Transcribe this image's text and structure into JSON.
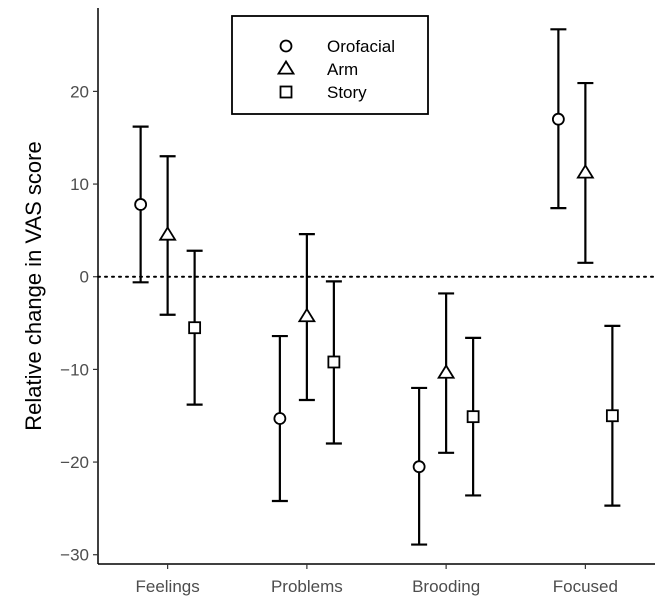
{
  "chart_data": {
    "type": "scatter",
    "subtype": "point-with-error-bars",
    "title": "",
    "xlabel": "",
    "ylabel": "Relative change in VAS score",
    "categories": [
      "Feelings",
      "Problems",
      "Brooding",
      "Focused"
    ],
    "ylim": [
      -31,
      29
    ],
    "yticks": [
      -30,
      -20,
      -10,
      0,
      10,
      20
    ],
    "ytick_labels": [
      "−30",
      "−20",
      "−10",
      "0",
      "10",
      "20"
    ],
    "reference_line": {
      "y": 0,
      "style": "dotted"
    },
    "grid": false,
    "legend_position": "top",
    "series": [
      {
        "name": "Orofacial",
        "marker": "circle",
        "values": [
          7.8,
          -15.3,
          -20.5,
          17.0
        ],
        "lower": [
          -0.6,
          -24.2,
          -28.9,
          7.4
        ],
        "upper": [
          16.2,
          -6.4,
          -12.0,
          26.7
        ]
      },
      {
        "name": "Arm",
        "marker": "triangle",
        "values": [
          4.5,
          -4.3,
          -10.4,
          11.2
        ],
        "lower": [
          -4.1,
          -13.3,
          -19.0,
          1.5
        ],
        "upper": [
          13.0,
          4.6,
          -1.8,
          20.9
        ]
      },
      {
        "name": "Story",
        "marker": "square",
        "values": [
          -5.5,
          -9.2,
          -15.1,
          -15.0
        ],
        "lower": [
          -13.8,
          -18.0,
          -23.6,
          -24.7
        ],
        "upper": [
          2.8,
          -0.5,
          -6.6,
          -5.3
        ]
      }
    ]
  }
}
